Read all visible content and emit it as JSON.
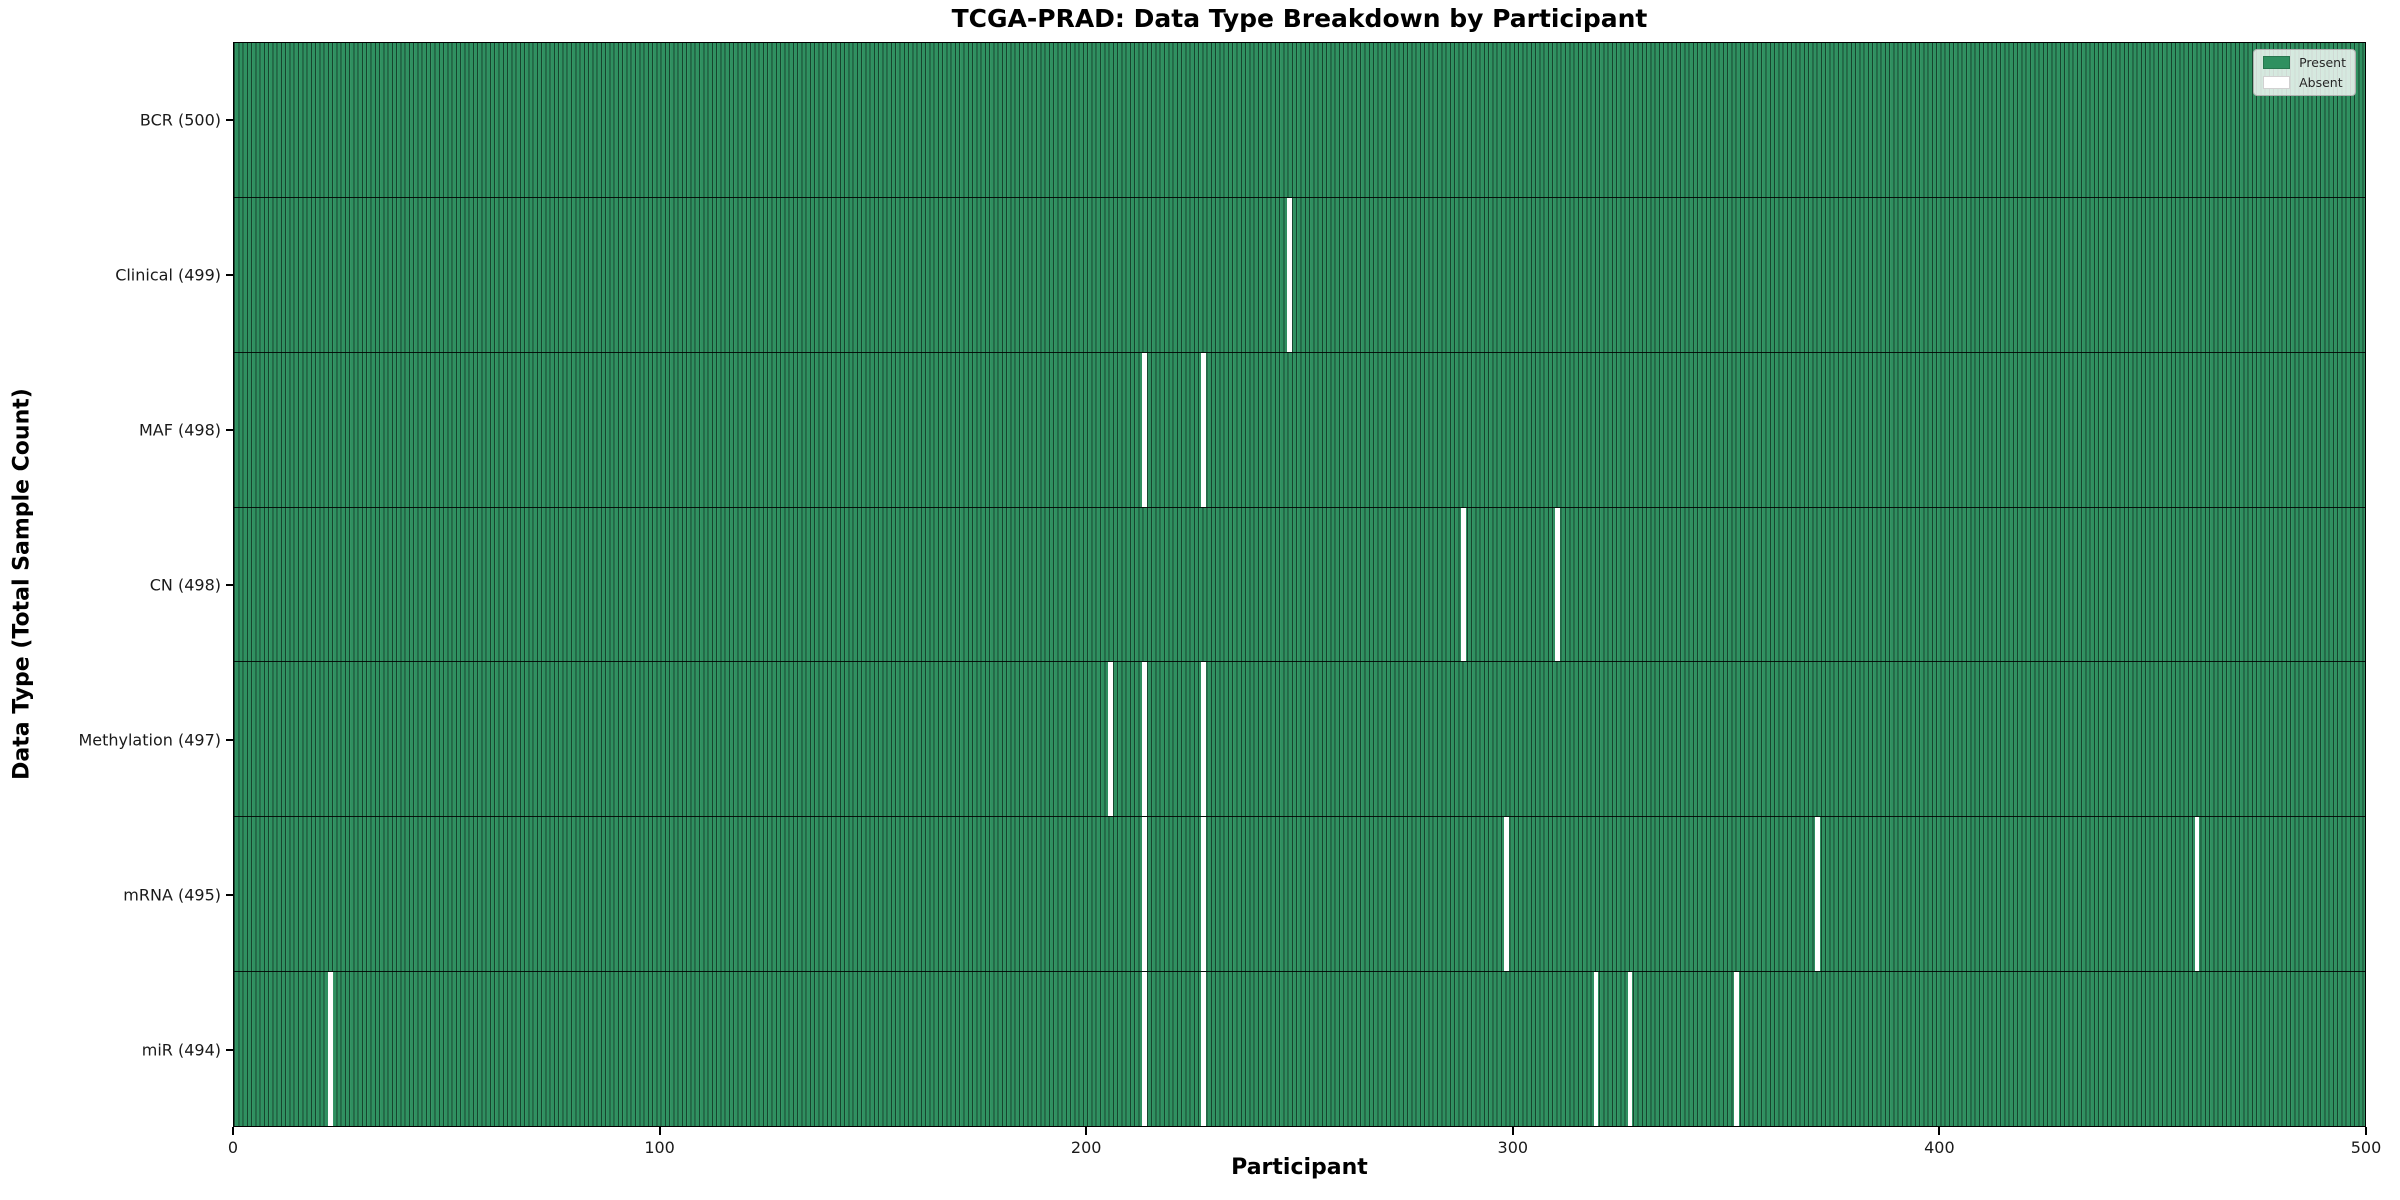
{
  "chart_data": {
    "type": "heatmap",
    "title": "TCGA-PRAD: Data Type Breakdown by Participant",
    "xlabel": "Participant",
    "ylabel": "Data Type (Total Sample Count)",
    "x_axis_range": [
      0,
      500
    ],
    "x_ticks": [
      0,
      100,
      200,
      300,
      400,
      500
    ],
    "n_participants": 500,
    "grid": "cell-edges",
    "legend_position": "upper-right",
    "colors": {
      "present": "#2f9060",
      "absent": "#ffffff"
    },
    "legend": [
      {
        "label": "Present",
        "color": "#2f9060"
      },
      {
        "label": "Absent",
        "color": "#ffffff"
      }
    ],
    "rows": [
      {
        "label": "BCR (500)",
        "data_type": "BCR",
        "total_samples": 500,
        "absent_participants": []
      },
      {
        "label": "Clinical (499)",
        "data_type": "Clinical",
        "total_samples": 499,
        "absent_participants": [
          247
        ]
      },
      {
        "label": "MAF (498)",
        "data_type": "MAF",
        "total_samples": 498,
        "absent_participants": [
          213,
          227
        ]
      },
      {
        "label": "CN (498)",
        "data_type": "CN",
        "total_samples": 498,
        "absent_participants": [
          288,
          310
        ]
      },
      {
        "label": "Methylation (497)",
        "data_type": "Methylation",
        "total_samples": 497,
        "absent_participants": [
          205,
          213,
          227
        ]
      },
      {
        "label": "mRNA (495)",
        "data_type": "mRNA",
        "total_samples": 495,
        "absent_participants": [
          213,
          227,
          298,
          371,
          460
        ]
      },
      {
        "label": "miR (494)",
        "data_type": "miR",
        "total_samples": 494,
        "absent_participants": [
          22,
          213,
          227,
          319,
          327,
          352
        ]
      }
    ]
  }
}
